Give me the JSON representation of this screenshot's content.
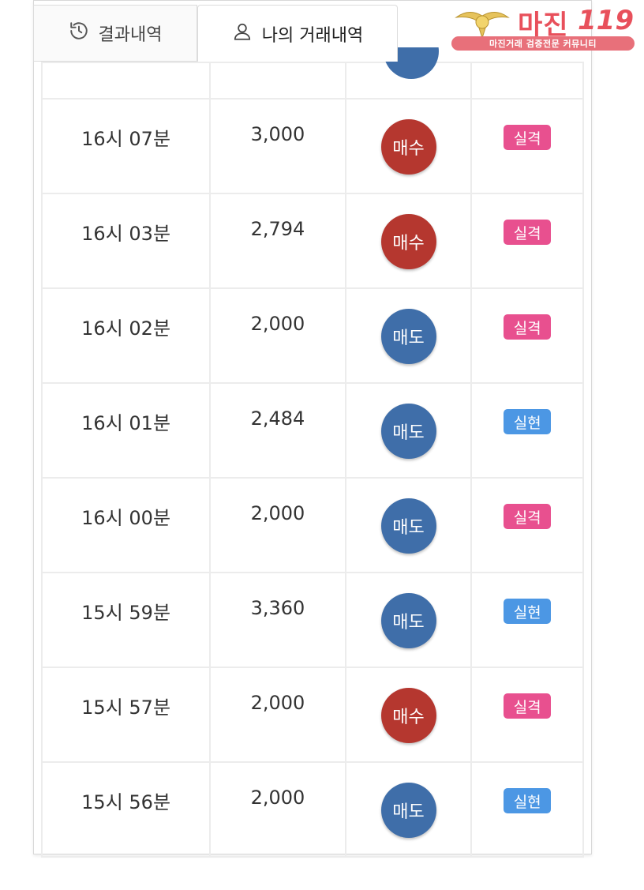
{
  "tabs": [
    {
      "label": "결과내역",
      "icon": "history-icon",
      "active": false
    },
    {
      "label": "나의 거래내역",
      "icon": "user-icon",
      "active": true
    }
  ],
  "logo": {
    "brand": "마진",
    "number": "119",
    "tagline": "마진거래 검증전문 커뮤니티"
  },
  "colors": {
    "buy": "#b5372f",
    "sell": "#3f6ea9",
    "fail": "#e8508f",
    "success": "#4c97e4"
  },
  "rows": [
    {
      "time": "16시 07분",
      "amount": "3,000",
      "type": "매수",
      "type_kind": "buy",
      "result": "실격",
      "result_kind": "fail"
    },
    {
      "time": "16시 03분",
      "amount": "2,794",
      "type": "매수",
      "type_kind": "buy",
      "result": "실격",
      "result_kind": "fail"
    },
    {
      "time": "16시 02분",
      "amount": "2,000",
      "type": "매도",
      "type_kind": "sell",
      "result": "실격",
      "result_kind": "fail"
    },
    {
      "time": "16시 01분",
      "amount": "2,484",
      "type": "매도",
      "type_kind": "sell",
      "result": "실현",
      "result_kind": "success"
    },
    {
      "time": "16시 00분",
      "amount": "2,000",
      "type": "매도",
      "type_kind": "sell",
      "result": "실격",
      "result_kind": "fail"
    },
    {
      "time": "15시 59분",
      "amount": "3,360",
      "type": "매도",
      "type_kind": "sell",
      "result": "실현",
      "result_kind": "success"
    },
    {
      "time": "15시 57분",
      "amount": "2,000",
      "type": "매수",
      "type_kind": "buy",
      "result": "실격",
      "result_kind": "fail"
    },
    {
      "time": "15시 56분",
      "amount": "2,000",
      "type": "매도",
      "type_kind": "sell",
      "result": "실현",
      "result_kind": "success"
    }
  ]
}
